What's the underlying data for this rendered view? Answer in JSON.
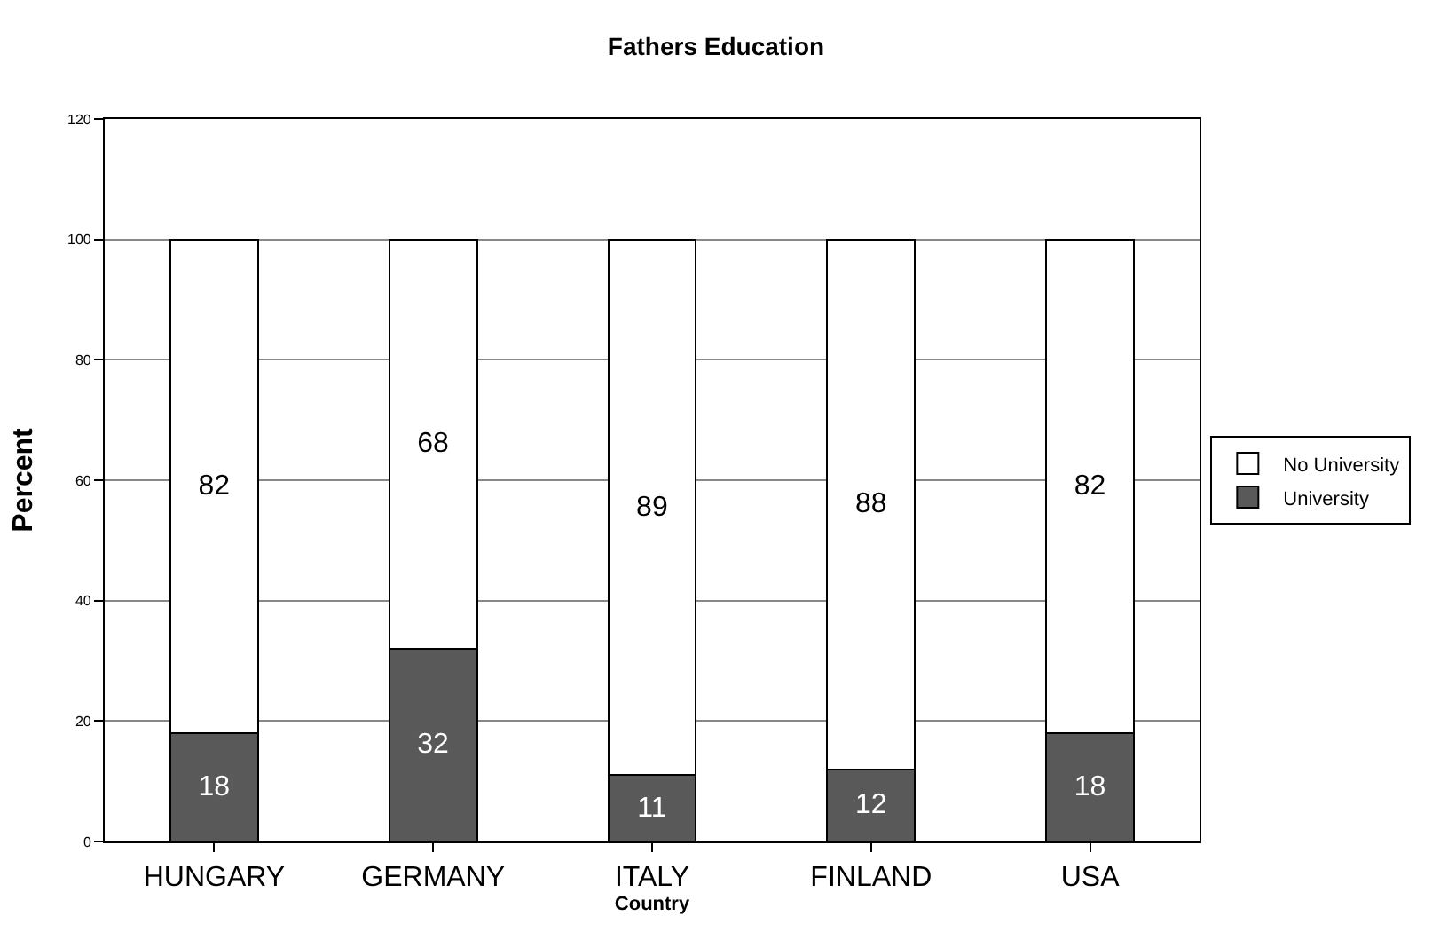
{
  "chart_data": {
    "type": "bar",
    "title": "Fathers Education",
    "xlabel": "Country",
    "ylabel": "Percent",
    "categories": [
      "HUNGARY",
      "GERMANY",
      "ITALY",
      "FINLAND",
      "USA"
    ],
    "series": [
      {
        "name": "University",
        "color": "#595959",
        "values": [
          18,
          32,
          11,
          12,
          18
        ]
      },
      {
        "name": "No University",
        "color": "#ffffff",
        "values": [
          82,
          68,
          89,
          88,
          82
        ]
      }
    ],
    "stacked": true,
    "data_labels": true,
    "ylim": [
      0,
      120
    ],
    "yticks": [
      0,
      20,
      40,
      60,
      80,
      100,
      120
    ],
    "grid": "y",
    "legend": "right"
  }
}
